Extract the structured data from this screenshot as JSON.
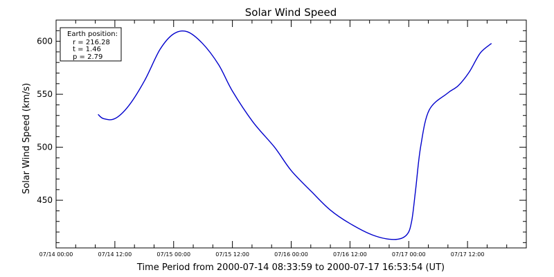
{
  "chart_data": {
    "type": "line",
    "title": "Solar Wind Speed",
    "xlabel": "Time Period from 2000-07-14 08:33:59 to 2000-07-17 16:53:54 (UT)",
    "ylabel": "Solar Wind Speed (km/s)",
    "xlim": [
      "2000-07-14T00:00",
      "2000-07-18T00:00"
    ],
    "ylim": [
      405,
      620
    ],
    "x_tick_labels": [
      "07/14 00:00",
      "07/14 12:00",
      "07/15 00:00",
      "07/15 12:00",
      "07/16 00:00",
      "07/16 12:00",
      "07/17 00:00",
      "07/17 12:00"
    ],
    "x_ticks": [
      "2000-07-14T00:00",
      "2000-07-14T12:00",
      "2000-07-15T00:00",
      "2000-07-15T12:00",
      "2000-07-16T00:00",
      "2000-07-16T12:00",
      "2000-07-17T00:00",
      "2000-07-17T12:00"
    ],
    "y_ticks": [
      450,
      500,
      550,
      600
    ],
    "grid": false,
    "series_color": "#0000cc",
    "legend": {
      "placement": "top-left",
      "lines": [
        "Earth position:",
        "r = 216.28",
        "t = 1.46",
        "p = 2.79"
      ]
    },
    "x": [
      "2000-07-14T08:34",
      "2000-07-14T09:41",
      "2000-07-14T12:00",
      "2000-07-14T14:48",
      "2000-07-14T18:05",
      "2000-07-14T21:11",
      "2000-07-15T00:00",
      "2000-07-15T02:47",
      "2000-07-15T05:53",
      "2000-07-15T09:10",
      "2000-07-15T12:00",
      "2000-07-15T16:10",
      "2000-07-15T20:36",
      "2000-07-16T00:00",
      "2000-07-16T04:10",
      "2000-07-16T07:55",
      "2000-07-16T12:00",
      "2000-07-16T16:43",
      "2000-07-16T20:58",
      "2000-07-16T23:31",
      "2000-07-17T00:35",
      "2000-07-17T01:24",
      "2000-07-17T02:25",
      "2000-07-17T04:10",
      "2000-07-17T07:55",
      "2000-07-17T10:05",
      "2000-07-17T12:21",
      "2000-07-17T14:37",
      "2000-07-17T16:53"
    ],
    "values": [
      531,
      527,
      527,
      539,
      563,
      592,
      607,
      609,
      598,
      578,
      553,
      524,
      500,
      478,
      458,
      441,
      428,
      417,
      413,
      417,
      430,
      460,
      500,
      535,
      551,
      558,
      571,
      589,
      598
    ]
  }
}
